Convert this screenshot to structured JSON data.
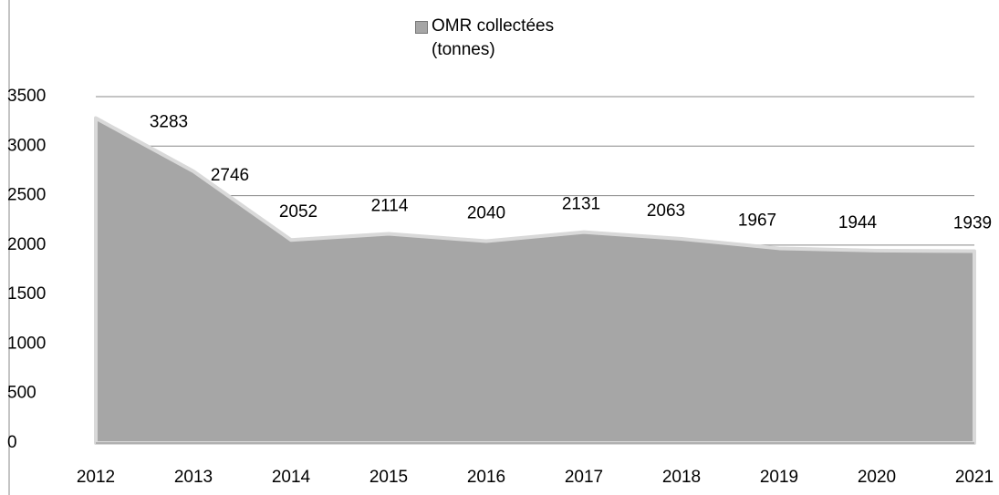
{
  "chart_data": {
    "type": "area",
    "categories": [
      "2012",
      "2013",
      "2014",
      "2015",
      "2016",
      "2017",
      "2018",
      "2019",
      "2020",
      "2021"
    ],
    "series": [
      {
        "name": "OMR collectées (tonnes)",
        "color": "#a6a6a6",
        "values": [
          3283,
          2746,
          2052,
          2114,
          2040,
          2131,
          2063,
          1967,
          1944,
          1939
        ]
      }
    ],
    "ylim": [
      0,
      3500
    ],
    "yticks": [
      0,
      500,
      1000,
      1500,
      2000,
      2500,
      3000,
      3500
    ],
    "grid": true,
    "legend": "top"
  }
}
